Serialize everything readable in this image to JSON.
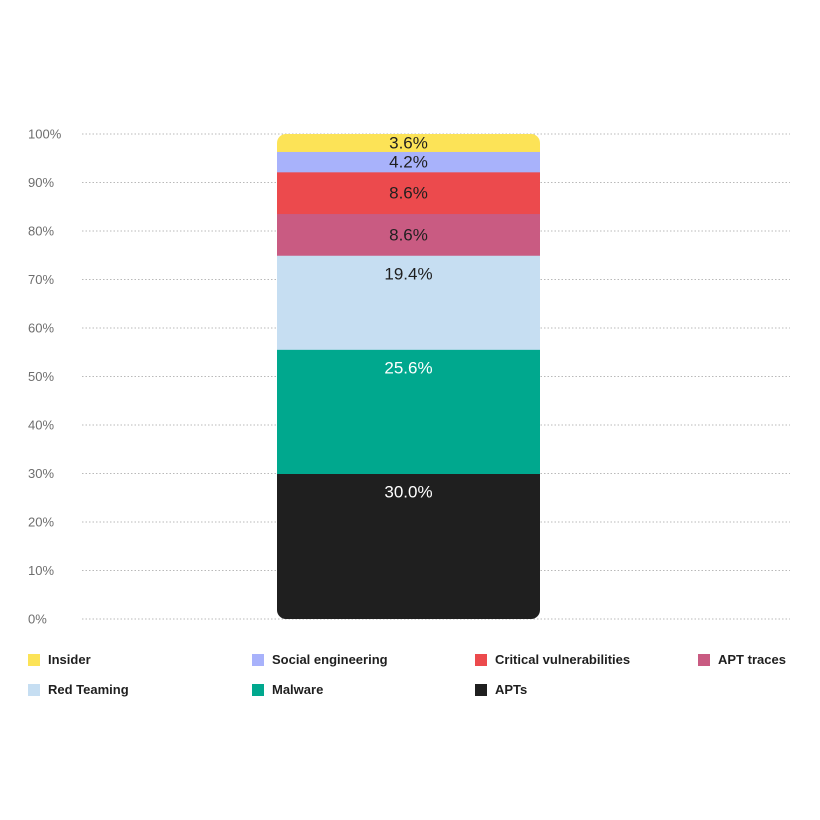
{
  "chart_data": {
    "type": "bar",
    "stacked": true,
    "categories": [
      ""
    ],
    "y_ticks": [
      "0%",
      "10%",
      "20%",
      "30%",
      "40%",
      "50%",
      "60%",
      "70%",
      "80%",
      "90%",
      "100%"
    ],
    "ylim": [
      0,
      100
    ],
    "grid": "horizontal dotted",
    "legend_placement": "bottom",
    "series": [
      {
        "name": "APTs",
        "values": [
          30.0
        ],
        "label": "30.0%",
        "color": "#1f1f1f",
        "label_color": "#ffffff"
      },
      {
        "name": "Malware",
        "values": [
          25.6
        ],
        "label": "25.6%",
        "color": "#00a88e",
        "label_color": "#ffffff"
      },
      {
        "name": "Red Teaming",
        "values": [
          19.4
        ],
        "label": "19.4%",
        "color": "#c6def2",
        "label_color": "#1f1f1f"
      },
      {
        "name": "APT traces",
        "values": [
          8.6
        ],
        "label": "8.6%",
        "color": "#c95b82",
        "label_color": "#1f1f1f"
      },
      {
        "name": "Critical vulnerabilities",
        "values": [
          8.6
        ],
        "label": "8.6%",
        "color": "#ec4a4d",
        "label_color": "#1f1f1f"
      },
      {
        "name": "Social engineering",
        "values": [
          4.2
        ],
        "label": "4.2%",
        "color": "#a8b2fb",
        "label_color": "#1f1f1f"
      },
      {
        "name": "Insider",
        "values": [
          3.6
        ],
        "label": "3.6%",
        "color": "#fce357",
        "label_color": "#1f1f1f"
      }
    ]
  },
  "legend": {
    "rows": [
      [
        {
          "label": "Insider",
          "color": "#fce357",
          "icon": "square-swatch"
        },
        {
          "label": "Social engineering",
          "color": "#a8b2fb",
          "icon": "square-swatch"
        },
        {
          "label": "Critical vulnerabilities",
          "color": "#ec4a4d",
          "icon": "square-swatch"
        },
        {
          "label": "APT traces",
          "color": "#c95b82",
          "icon": "square-swatch"
        }
      ],
      [
        {
          "label": "Red Teaming",
          "color": "#c6def2",
          "icon": "square-swatch"
        },
        {
          "label": "Malware",
          "color": "#00a88e",
          "icon": "square-swatch"
        },
        {
          "label": "APTs",
          "color": "#1f1f1f",
          "icon": "square-swatch"
        }
      ]
    ]
  }
}
